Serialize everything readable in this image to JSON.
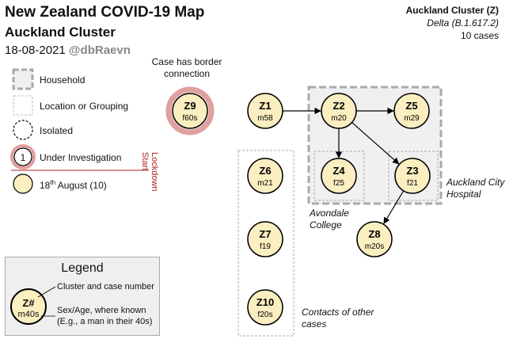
{
  "header": {
    "title": "New Zealand COVID-19 Map",
    "subtitle": "Auckland Cluster",
    "date": "18-08-2021",
    "handle": "@dbRaevn"
  },
  "cluster_info": {
    "name": "Auckland Cluster (Z)",
    "variant": "Delta (B.1.617.2)",
    "cases": "10 cases"
  },
  "key": {
    "household": "Household",
    "location": "Location or Grouping",
    "isolated": "Isolated",
    "under_investigation": "Under Investigation",
    "under_investigation_num": "1",
    "date_prefix": "18",
    "date_sup": "th",
    "date_suffix": " August (10)",
    "lockdown_line1": "Lockdown",
    "lockdown_line2": "Start"
  },
  "annotations": {
    "border_line1": "Case has border",
    "border_line2": "connection",
    "avondale_line1": "Avondale",
    "avondale_line2": "College",
    "hospital_line1": "Auckland City",
    "hospital_line2": "Hospital",
    "contacts_line1": "Contacts of other",
    "contacts_line2": "cases"
  },
  "legend": {
    "title": "Legend",
    "sample_id": "Z#",
    "sample_age": "m40s",
    "desc_cluster": "Cluster and case number",
    "desc_sexage": "Sex/Age, where known",
    "desc_example": "(E.g., a man in their 40s)"
  },
  "cases": [
    {
      "id": "Z1",
      "sexage": "m58"
    },
    {
      "id": "Z2",
      "sexage": "m20"
    },
    {
      "id": "Z3",
      "sexage": "f21"
    },
    {
      "id": "Z4",
      "sexage": "f25"
    },
    {
      "id": "Z5",
      "sexage": "m29"
    },
    {
      "id": "Z6",
      "sexage": "m21"
    },
    {
      "id": "Z7",
      "sexage": "f19"
    },
    {
      "id": "Z8",
      "sexage": "m20s"
    },
    {
      "id": "Z9",
      "sexage": "f60s",
      "border": true
    },
    {
      "id": "Z10",
      "sexage": "f20s"
    }
  ],
  "links": [
    {
      "from": "Z1",
      "to": "Z2"
    },
    {
      "from": "Z2",
      "to": "Z5"
    },
    {
      "from": "Z2",
      "to": "Z4"
    },
    {
      "from": "Z2",
      "to": "Z3"
    },
    {
      "from": "Z3",
      "to": "Z8"
    }
  ],
  "colors": {
    "case_fill": "#fbeec0",
    "border_ring": "#e0a0a0",
    "household_fill": "#f0f0f0",
    "lockdown": "#b22222"
  }
}
